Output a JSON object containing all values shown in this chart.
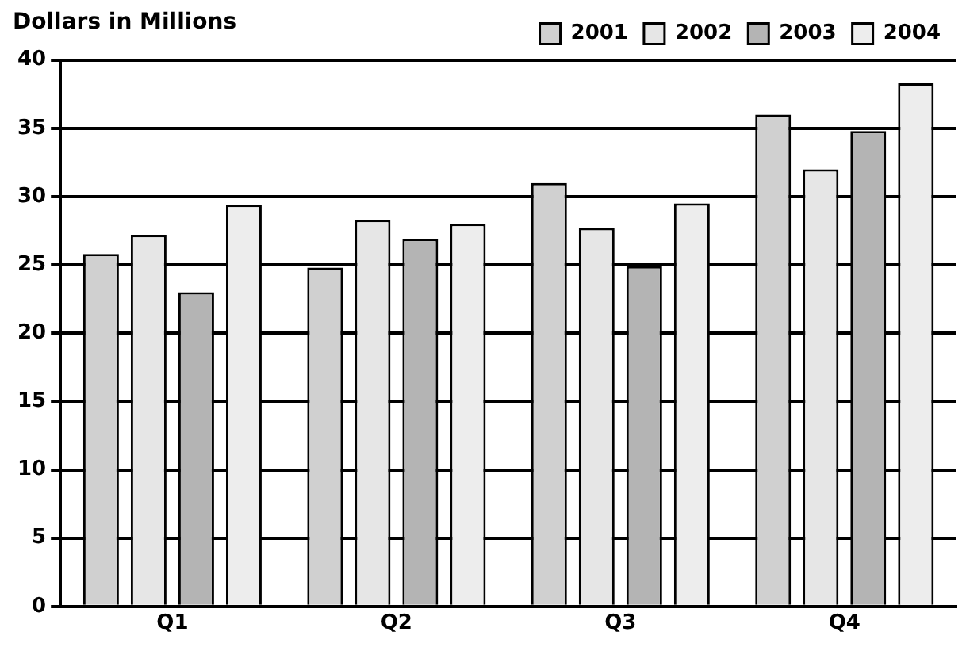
{
  "chart_data": {
    "type": "bar",
    "title": "Dollars in Millions",
    "categories": [
      "Q1",
      "Q2",
      "Q3",
      "Q4"
    ],
    "series": [
      {
        "name": "2001",
        "color": "#d0d0d0",
        "values": [
          25.8,
          24.8,
          31,
          36
        ]
      },
      {
        "name": "2002",
        "color": "#e6e6e6",
        "values": [
          27.2,
          28.3,
          27.7,
          32
        ]
      },
      {
        "name": "2003",
        "color": "#b4b4b4",
        "values": [
          23,
          26.9,
          24.9,
          34.8
        ]
      },
      {
        "name": "2004",
        "color": "#ededed",
        "values": [
          29.4,
          28,
          29.5,
          38.3
        ]
      }
    ],
    "ylim": [
      0,
      40
    ],
    "yticks": [
      0,
      5,
      10,
      15,
      20,
      25,
      30,
      35,
      40
    ],
    "grid": "y",
    "legend": "top right"
  }
}
